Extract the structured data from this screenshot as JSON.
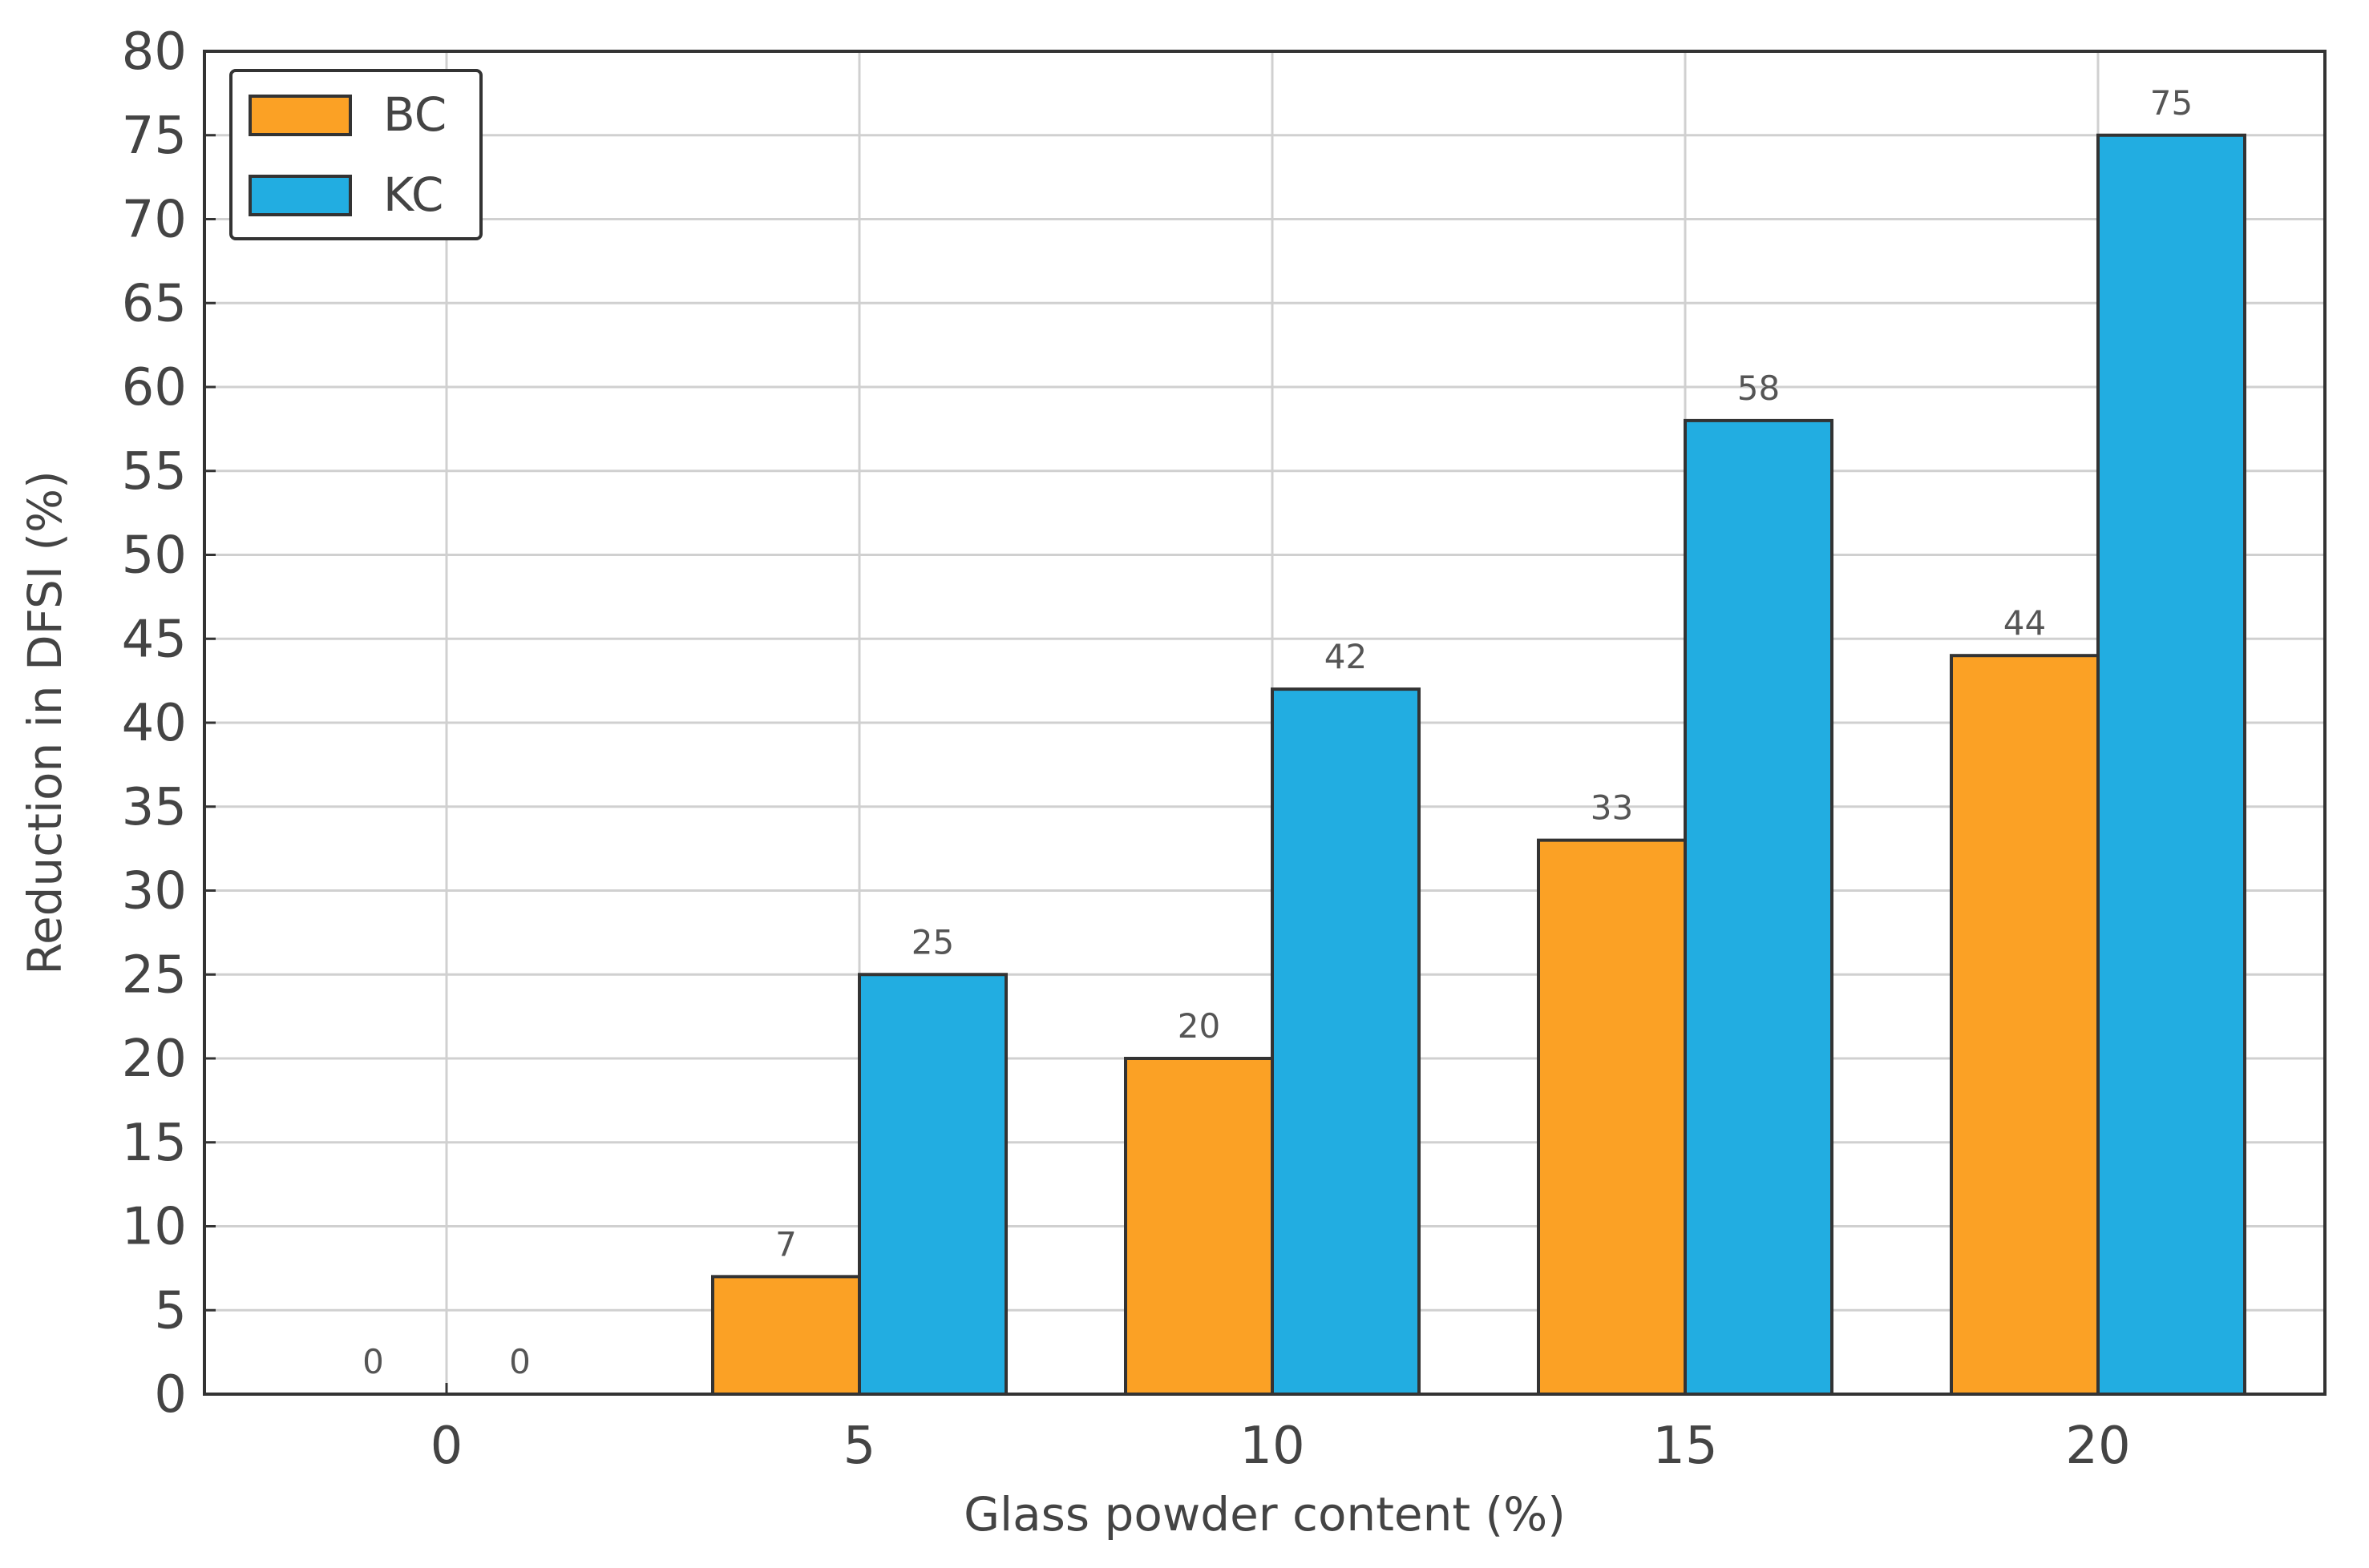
{
  "chart_data": {
    "type": "bar",
    "xlabel": "Glass powder content (%)",
    "ylabel": "Reduction in DFSI (%)",
    "categories": [
      "0",
      "5",
      "10",
      "15",
      "20"
    ],
    "series": [
      {
        "name": "BC",
        "color": "#fba125",
        "values": [
          0,
          7,
          20,
          33,
          44
        ],
        "labels": [
          "0",
          "7",
          "20",
          "33",
          "44"
        ]
      },
      {
        "name": "KC",
        "color": "#22ade1",
        "values": [
          0,
          25,
          42,
          58,
          75
        ],
        "labels": [
          "0",
          "25",
          "42",
          "58",
          "75"
        ]
      }
    ],
    "ylim": [
      0,
      80
    ],
    "yticks": [
      "0",
      "5",
      "10",
      "15",
      "20",
      "25",
      "30",
      "35",
      "40",
      "45",
      "50",
      "55",
      "60",
      "65",
      "70",
      "75",
      "80"
    ],
    "grid": true,
    "legend_position": "top-left",
    "colors": {
      "grid": "#d0d0d0",
      "axis": "#333333",
      "bar_edge": "#333333",
      "text": "#444444"
    }
  }
}
